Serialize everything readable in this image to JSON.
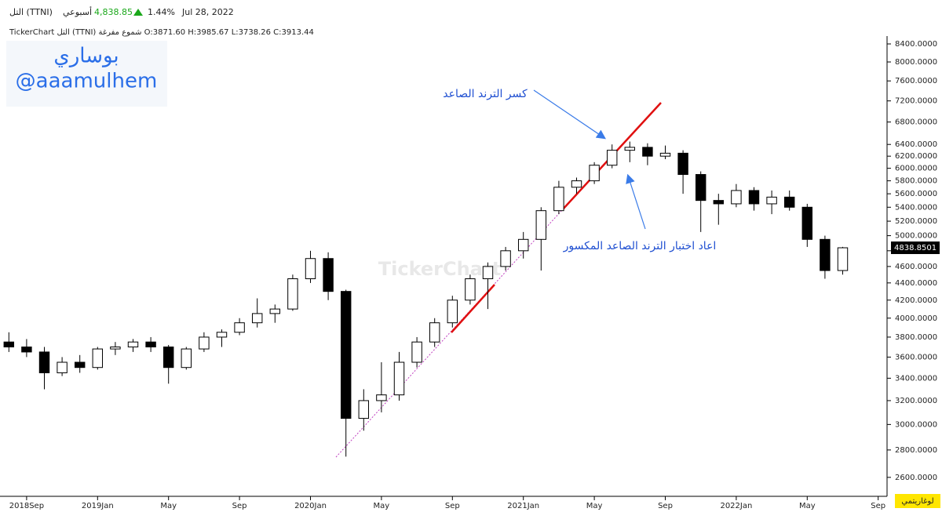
{
  "header": {
    "symbol": "التل (TTNI)",
    "period": "أسبوعي",
    "price": "4,838.85",
    "change": "1.44%",
    "date": "Jul 28, 2022",
    "info": "TickerChart التل (TTNI) شموع مفرغة O:3871.60 H:3985.67 L:3738.26 C:3913.44",
    "brand_name": "بوساري",
    "brand_handle": "@aaamulhem",
    "watermark": "TickerChart",
    "scale_mode": "لوغاريتمي"
  },
  "chart_data": {
    "type": "candlestick",
    "log_scale": true,
    "annotations": [
      "كسر الترند الصاعد",
      "اعاد اختبار الترند الصاعد المكسور"
    ],
    "last_price": {
      "value": 4838.8501,
      "label": "4838.8501"
    },
    "open": [
      3750,
      3700,
      3650,
      3450,
      3550,
      3500,
      3680,
      3700,
      3750,
      3700,
      3500,
      3680,
      3800,
      3850,
      3950,
      4050,
      4100,
      4450,
      4700,
      4300,
      3050,
      3200,
      3250,
      3550,
      3750,
      3950,
      4200,
      4450,
      4600,
      4800,
      4950,
      5350,
      5700,
      5800,
      6050,
      6300,
      6350,
      6200,
      6250,
      5900,
      5500,
      5450,
      5650,
      5450,
      5550,
      5400,
      4950,
      4550
    ],
    "high": [
      3850,
      3780,
      3700,
      3600,
      3620,
      3700,
      3750,
      3780,
      3800,
      3720,
      3700,
      3850,
      3880,
      4000,
      4220,
      4150,
      4500,
      4800,
      4780,
      4320,
      3300,
      3550,
      3650,
      3800,
      4000,
      4250,
      4500,
      4650,
      4850,
      5050,
      5400,
      5800,
      5850,
      6100,
      6400,
      6450,
      6420,
      6380,
      6300,
      5950,
      5600,
      5750,
      5700,
      5650,
      5650,
      5450,
      5000,
      4850
    ],
    "low": [
      3650,
      3600,
      3300,
      3420,
      3450,
      3480,
      3620,
      3650,
      3650,
      3350,
      3480,
      3650,
      3700,
      3820,
      3900,
      3950,
      4080,
      4400,
      4200,
      2750,
      2950,
      3100,
      3200,
      3500,
      3700,
      3900,
      4150,
      4100,
      4550,
      4700,
      4550,
      5300,
      5600,
      5750,
      6000,
      6100,
      6050,
      6150,
      5600,
      5050,
      5150,
      5400,
      5350,
      5300,
      5350,
      4850,
      4450,
      4500
    ],
    "close": [
      3700,
      3650,
      3450,
      3550,
      3500,
      3680,
      3700,
      3750,
      3700,
      3500,
      3680,
      3800,
      3850,
      3950,
      4050,
      4100,
      4450,
      4700,
      4300,
      3050,
      3200,
      3250,
      3550,
      3750,
      3950,
      4200,
      4450,
      4600,
      4800,
      4950,
      5350,
      5700,
      5800,
      6050,
      6300,
      6350,
      6200,
      6250,
      5900,
      5500,
      5450,
      5650,
      5450,
      5550,
      5400,
      4950,
      4550,
      4838.85
    ],
    "xlim": [
      -0.5,
      49.5
    ],
    "xticks": [
      {
        "value": 1,
        "label": "2018Sep"
      },
      {
        "value": 5,
        "label": "2019Jan"
      },
      {
        "value": 9,
        "label": "May"
      },
      {
        "value": 13,
        "label": "Sep"
      },
      {
        "value": 17,
        "label": "2020Jan"
      },
      {
        "value": 21,
        "label": "May"
      },
      {
        "value": 25,
        "label": "Sep"
      },
      {
        "value": 29,
        "label": "2021Jan"
      },
      {
        "value": 33,
        "label": "May"
      },
      {
        "value": 37,
        "label": "Sep"
      },
      {
        "value": 41,
        "label": "2022Jan"
      },
      {
        "value": 45,
        "label": "May"
      },
      {
        "value": 49,
        "label": "Sep"
      }
    ],
    "ylim": [
      2470,
      9460
    ],
    "yticks": [
      {
        "value": 2600,
        "label": "2600.0000"
      },
      {
        "value": 2800,
        "label": "2800.0000"
      },
      {
        "value": 3000,
        "label": "3000.0000"
      },
      {
        "value": 3200,
        "label": "3200.0000"
      },
      {
        "value": 3400,
        "label": "3400.0000"
      },
      {
        "value": 3600,
        "label": "3600.0000"
      },
      {
        "value": 3800,
        "label": "3800.0000"
      },
      {
        "value": 4000,
        "label": "4000.0000"
      },
      {
        "value": 4200,
        "label": "4200.0000"
      },
      {
        "value": 4400,
        "label": "4400.0000"
      },
      {
        "value": 4600,
        "label": "4600.0000"
      },
      {
        "value": 4800,
        "label": "4800.0000"
      },
      {
        "value": 5000,
        "label": "5000.0000"
      },
      {
        "value": 5200,
        "label": "5200.0000"
      },
      {
        "value": 5400,
        "label": "5400.0000"
      },
      {
        "value": 5600,
        "label": "5600.0000"
      },
      {
        "value": 5800,
        "label": "5800.0000"
      },
      {
        "value": 6000,
        "label": "6000.0000"
      },
      {
        "value": 6200,
        "label": "6200.0000"
      },
      {
        "value": 6400,
        "label": "6400.0000"
      },
      {
        "value": 6800,
        "label": "6800.0000"
      },
      {
        "value": 7200,
        "label": "7200.0000"
      },
      {
        "value": 7600,
        "label": "7600.0000"
      },
      {
        "value": 8000,
        "label": "8000.0000"
      },
      {
        "value": 8400,
        "label": "8400.0000"
      }
    ],
    "up_color": "#ffffff",
    "down_color": "#000000"
  }
}
